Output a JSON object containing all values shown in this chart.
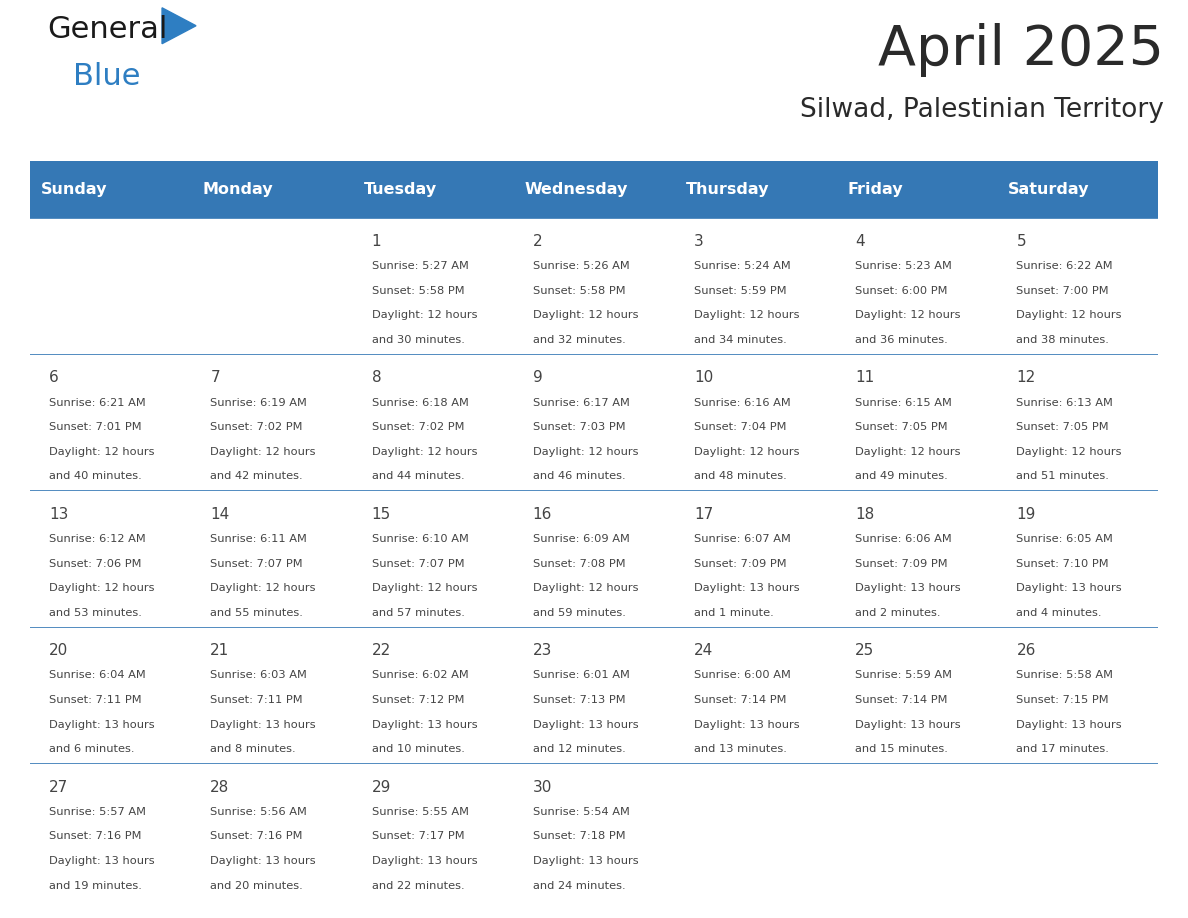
{
  "title": "April 2025",
  "subtitle": "Silwad, Palestinian Territory",
  "days_of_week": [
    "Sunday",
    "Monday",
    "Tuesday",
    "Wednesday",
    "Thursday",
    "Friday",
    "Saturday"
  ],
  "header_bg": "#3578b5",
  "header_text": "#ffffff",
  "border_color": "#3578b5",
  "text_color": "#444444",
  "title_color": "#2a2a2a",
  "subtitle_color": "#2a2a2a",
  "logo_color_general": "#1a1a1a",
  "logo_color_blue": "#2e7ec2",
  "logo_triangle_color": "#2e7ec2",
  "calendar_data": [
    [
      {
        "day": "",
        "sunrise": "",
        "sunset": "",
        "daylight_line1": "",
        "daylight_line2": ""
      },
      {
        "day": "",
        "sunrise": "",
        "sunset": "",
        "daylight_line1": "",
        "daylight_line2": ""
      },
      {
        "day": "1",
        "sunrise": "Sunrise: 5:27 AM",
        "sunset": "Sunset: 5:58 PM",
        "daylight_line1": "Daylight: 12 hours",
        "daylight_line2": "and 30 minutes."
      },
      {
        "day": "2",
        "sunrise": "Sunrise: 5:26 AM",
        "sunset": "Sunset: 5:58 PM",
        "daylight_line1": "Daylight: 12 hours",
        "daylight_line2": "and 32 minutes."
      },
      {
        "day": "3",
        "sunrise": "Sunrise: 5:24 AM",
        "sunset": "Sunset: 5:59 PM",
        "daylight_line1": "Daylight: 12 hours",
        "daylight_line2": "and 34 minutes."
      },
      {
        "day": "4",
        "sunrise": "Sunrise: 5:23 AM",
        "sunset": "Sunset: 6:00 PM",
        "daylight_line1": "Daylight: 12 hours",
        "daylight_line2": "and 36 minutes."
      },
      {
        "day": "5",
        "sunrise": "Sunrise: 6:22 AM",
        "sunset": "Sunset: 7:00 PM",
        "daylight_line1": "Daylight: 12 hours",
        "daylight_line2": "and 38 minutes."
      }
    ],
    [
      {
        "day": "6",
        "sunrise": "Sunrise: 6:21 AM",
        "sunset": "Sunset: 7:01 PM",
        "daylight_line1": "Daylight: 12 hours",
        "daylight_line2": "and 40 minutes."
      },
      {
        "day": "7",
        "sunrise": "Sunrise: 6:19 AM",
        "sunset": "Sunset: 7:02 PM",
        "daylight_line1": "Daylight: 12 hours",
        "daylight_line2": "and 42 minutes."
      },
      {
        "day": "8",
        "sunrise": "Sunrise: 6:18 AM",
        "sunset": "Sunset: 7:02 PM",
        "daylight_line1": "Daylight: 12 hours",
        "daylight_line2": "and 44 minutes."
      },
      {
        "day": "9",
        "sunrise": "Sunrise: 6:17 AM",
        "sunset": "Sunset: 7:03 PM",
        "daylight_line1": "Daylight: 12 hours",
        "daylight_line2": "and 46 minutes."
      },
      {
        "day": "10",
        "sunrise": "Sunrise: 6:16 AM",
        "sunset": "Sunset: 7:04 PM",
        "daylight_line1": "Daylight: 12 hours",
        "daylight_line2": "and 48 minutes."
      },
      {
        "day": "11",
        "sunrise": "Sunrise: 6:15 AM",
        "sunset": "Sunset: 7:05 PM",
        "daylight_line1": "Daylight: 12 hours",
        "daylight_line2": "and 49 minutes."
      },
      {
        "day": "12",
        "sunrise": "Sunrise: 6:13 AM",
        "sunset": "Sunset: 7:05 PM",
        "daylight_line1": "Daylight: 12 hours",
        "daylight_line2": "and 51 minutes."
      }
    ],
    [
      {
        "day": "13",
        "sunrise": "Sunrise: 6:12 AM",
        "sunset": "Sunset: 7:06 PM",
        "daylight_line1": "Daylight: 12 hours",
        "daylight_line2": "and 53 minutes."
      },
      {
        "day": "14",
        "sunrise": "Sunrise: 6:11 AM",
        "sunset": "Sunset: 7:07 PM",
        "daylight_line1": "Daylight: 12 hours",
        "daylight_line2": "and 55 minutes."
      },
      {
        "day": "15",
        "sunrise": "Sunrise: 6:10 AM",
        "sunset": "Sunset: 7:07 PM",
        "daylight_line1": "Daylight: 12 hours",
        "daylight_line2": "and 57 minutes."
      },
      {
        "day": "16",
        "sunrise": "Sunrise: 6:09 AM",
        "sunset": "Sunset: 7:08 PM",
        "daylight_line1": "Daylight: 12 hours",
        "daylight_line2": "and 59 minutes."
      },
      {
        "day": "17",
        "sunrise": "Sunrise: 6:07 AM",
        "sunset": "Sunset: 7:09 PM",
        "daylight_line1": "Daylight: 13 hours",
        "daylight_line2": "and 1 minute."
      },
      {
        "day": "18",
        "sunrise": "Sunrise: 6:06 AM",
        "sunset": "Sunset: 7:09 PM",
        "daylight_line1": "Daylight: 13 hours",
        "daylight_line2": "and 2 minutes."
      },
      {
        "day": "19",
        "sunrise": "Sunrise: 6:05 AM",
        "sunset": "Sunset: 7:10 PM",
        "daylight_line1": "Daylight: 13 hours",
        "daylight_line2": "and 4 minutes."
      }
    ],
    [
      {
        "day": "20",
        "sunrise": "Sunrise: 6:04 AM",
        "sunset": "Sunset: 7:11 PM",
        "daylight_line1": "Daylight: 13 hours",
        "daylight_line2": "and 6 minutes."
      },
      {
        "day": "21",
        "sunrise": "Sunrise: 6:03 AM",
        "sunset": "Sunset: 7:11 PM",
        "daylight_line1": "Daylight: 13 hours",
        "daylight_line2": "and 8 minutes."
      },
      {
        "day": "22",
        "sunrise": "Sunrise: 6:02 AM",
        "sunset": "Sunset: 7:12 PM",
        "daylight_line1": "Daylight: 13 hours",
        "daylight_line2": "and 10 minutes."
      },
      {
        "day": "23",
        "sunrise": "Sunrise: 6:01 AM",
        "sunset": "Sunset: 7:13 PM",
        "daylight_line1": "Daylight: 13 hours",
        "daylight_line2": "and 12 minutes."
      },
      {
        "day": "24",
        "sunrise": "Sunrise: 6:00 AM",
        "sunset": "Sunset: 7:14 PM",
        "daylight_line1": "Daylight: 13 hours",
        "daylight_line2": "and 13 minutes."
      },
      {
        "day": "25",
        "sunrise": "Sunrise: 5:59 AM",
        "sunset": "Sunset: 7:14 PM",
        "daylight_line1": "Daylight: 13 hours",
        "daylight_line2": "and 15 minutes."
      },
      {
        "day": "26",
        "sunrise": "Sunrise: 5:58 AM",
        "sunset": "Sunset: 7:15 PM",
        "daylight_line1": "Daylight: 13 hours",
        "daylight_line2": "and 17 minutes."
      }
    ],
    [
      {
        "day": "27",
        "sunrise": "Sunrise: 5:57 AM",
        "sunset": "Sunset: 7:16 PM",
        "daylight_line1": "Daylight: 13 hours",
        "daylight_line2": "and 19 minutes."
      },
      {
        "day": "28",
        "sunrise": "Sunrise: 5:56 AM",
        "sunset": "Sunset: 7:16 PM",
        "daylight_line1": "Daylight: 13 hours",
        "daylight_line2": "and 20 minutes."
      },
      {
        "day": "29",
        "sunrise": "Sunrise: 5:55 AM",
        "sunset": "Sunset: 7:17 PM",
        "daylight_line1": "Daylight: 13 hours",
        "daylight_line2": "and 22 minutes."
      },
      {
        "day": "30",
        "sunrise": "Sunrise: 5:54 AM",
        "sunset": "Sunset: 7:18 PM",
        "daylight_line1": "Daylight: 13 hours",
        "daylight_line2": "and 24 minutes."
      },
      {
        "day": "",
        "sunrise": "",
        "sunset": "",
        "daylight_line1": "",
        "daylight_line2": ""
      },
      {
        "day": "",
        "sunrise": "",
        "sunset": "",
        "daylight_line1": "",
        "daylight_line2": ""
      },
      {
        "day": "",
        "sunrise": "",
        "sunset": "",
        "daylight_line1": "",
        "daylight_line2": ""
      }
    ]
  ]
}
